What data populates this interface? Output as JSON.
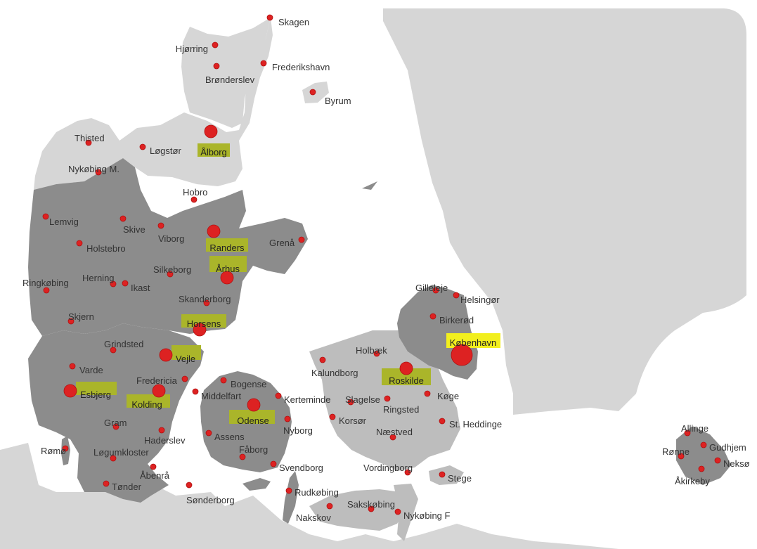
{
  "colors": {
    "sea": "#ffffff",
    "land_light": "#d6d6d6",
    "land_mid": "#bdbdbd",
    "land_dark": "#8c8c8c",
    "border": "#ffffff",
    "dot": "#dd2222",
    "dot_stroke": "#b01010",
    "highlight_yellow": "#f2ef1e",
    "highlight_olive": "#aab52a",
    "label": "#333333"
  },
  "regions": {
    "sweden_label": "",
    "legend": ""
  },
  "cities": [
    {
      "id": "skagen",
      "name": "Skagen",
      "size": "small"
    },
    {
      "id": "hjorring",
      "name": "Hjørring",
      "size": "small"
    },
    {
      "id": "frederikshavn",
      "name": "Frederikshavn",
      "size": "small"
    },
    {
      "id": "bronderslev",
      "name": "Brønderslev",
      "size": "small"
    },
    {
      "id": "byrum",
      "name": "Byrum",
      "size": "small"
    },
    {
      "id": "thisted",
      "name": "Thisted",
      "size": "small"
    },
    {
      "id": "logstor",
      "name": "Løgstør",
      "size": "small"
    },
    {
      "id": "aalborg",
      "name": "Ålborg",
      "size": "large",
      "highlight": "olive"
    },
    {
      "id": "nykobing_m",
      "name": "Nykøbing M.",
      "size": "small"
    },
    {
      "id": "hobro",
      "name": "Hobro",
      "size": "small"
    },
    {
      "id": "lemvig",
      "name": "Lemvig",
      "size": "small"
    },
    {
      "id": "skive",
      "name": "Skive",
      "size": "small"
    },
    {
      "id": "viborg",
      "name": "Viborg",
      "size": "small"
    },
    {
      "id": "randers",
      "name": "Randers",
      "size": "large",
      "highlight": "olive"
    },
    {
      "id": "grena",
      "name": "Grenå",
      "size": "small"
    },
    {
      "id": "holstebro",
      "name": "Holstebro",
      "size": "small"
    },
    {
      "id": "aarhus",
      "name": "Århus",
      "size": "large",
      "highlight": "olive"
    },
    {
      "id": "herning",
      "name": "Herning",
      "size": "small"
    },
    {
      "id": "silkeborg",
      "name": "Silkeborg",
      "size": "small"
    },
    {
      "id": "ikast",
      "name": "Ikast",
      "size": "small"
    },
    {
      "id": "ringkobing",
      "name": "Ringkøbing",
      "size": "small"
    },
    {
      "id": "skanderborg",
      "name": "Skanderborg",
      "size": "small"
    },
    {
      "id": "skjern",
      "name": "Skjern",
      "size": "small"
    },
    {
      "id": "horsens",
      "name": "Horsens",
      "size": "large",
      "highlight": "olive"
    },
    {
      "id": "grindsted",
      "name": "Grindsted",
      "size": "small"
    },
    {
      "id": "vejle",
      "name": "Vejle",
      "size": "large",
      "highlight": "olive"
    },
    {
      "id": "varde",
      "name": "Varde",
      "size": "small"
    },
    {
      "id": "fredericia",
      "name": "Fredericia",
      "size": "small"
    },
    {
      "id": "esbjerg",
      "name": "Esbjerg",
      "size": "large",
      "highlight": "olive"
    },
    {
      "id": "kolding",
      "name": "Kolding",
      "size": "large",
      "highlight": "olive"
    },
    {
      "id": "middelfart",
      "name": "Middelfart",
      "size": "small"
    },
    {
      "id": "bogense",
      "name": "Bogense",
      "size": "small"
    },
    {
      "id": "kerteminde",
      "name": "Kerteminde",
      "size": "small"
    },
    {
      "id": "odense",
      "name": "Odense",
      "size": "large",
      "highlight": "olive"
    },
    {
      "id": "gram",
      "name": "Gram",
      "size": "small"
    },
    {
      "id": "haderslev",
      "name": "Haderslev",
      "size": "small"
    },
    {
      "id": "assens",
      "name": "Assens",
      "size": "small"
    },
    {
      "id": "nyborg",
      "name": "Nyborg",
      "size": "small"
    },
    {
      "id": "romo",
      "name": "Rømø",
      "size": "small"
    },
    {
      "id": "logumkloster",
      "name": "Løgumkloster",
      "size": "small"
    },
    {
      "id": "faborg",
      "name": "Fåborg",
      "size": "small"
    },
    {
      "id": "svendborg",
      "name": "Svendborg",
      "size": "small"
    },
    {
      "id": "abenra",
      "name": "Åbenrå",
      "size": "small"
    },
    {
      "id": "tonder",
      "name": "Tønder",
      "size": "small"
    },
    {
      "id": "sonderborg",
      "name": "Sønderborg",
      "size": "small"
    },
    {
      "id": "rudkobing",
      "name": "Rudkøbing",
      "size": "small"
    },
    {
      "id": "nakskov",
      "name": "Nakskov",
      "size": "small"
    },
    {
      "id": "sakskobing",
      "name": "Sakskøbing",
      "size": "small"
    },
    {
      "id": "nykobing_f",
      "name": "Nykøbing F",
      "size": "small"
    },
    {
      "id": "gilleleje",
      "name": "Gilleleje",
      "size": "small"
    },
    {
      "id": "helsingor",
      "name": "Helsingør",
      "size": "small"
    },
    {
      "id": "birkerod",
      "name": "Birkerød",
      "size": "small"
    },
    {
      "id": "kobenhavn",
      "name": "København",
      "size": "xlarge",
      "highlight": "yellow"
    },
    {
      "id": "holbaek",
      "name": "Holbæk",
      "size": "small"
    },
    {
      "id": "kalundborg",
      "name": "Kalundborg",
      "size": "small"
    },
    {
      "id": "roskilde",
      "name": "Roskilde",
      "size": "large",
      "highlight": "olive"
    },
    {
      "id": "koge",
      "name": "Køge",
      "size": "small"
    },
    {
      "id": "slagelse",
      "name": "Slagelse",
      "size": "small"
    },
    {
      "id": "ringsted",
      "name": "Ringsted",
      "size": "small"
    },
    {
      "id": "korsor",
      "name": "Korsør",
      "size": "small"
    },
    {
      "id": "st_heddinge",
      "name": "St. Heddinge",
      "size": "small"
    },
    {
      "id": "naestved",
      "name": "Næstved",
      "size": "small"
    },
    {
      "id": "vordingborg",
      "name": "Vordingborg",
      "size": "small"
    },
    {
      "id": "stege",
      "name": "Stege",
      "size": "small"
    },
    {
      "id": "allinge",
      "name": "Allinge",
      "size": "small"
    },
    {
      "id": "ronne",
      "name": "Rønne",
      "size": "small"
    },
    {
      "id": "gudhjem",
      "name": "Gudhjem",
      "size": "small"
    },
    {
      "id": "nekso",
      "name": "Neksø",
      "size": "small"
    },
    {
      "id": "akirkeby",
      "name": "Åkirkeby",
      "size": "small"
    }
  ]
}
